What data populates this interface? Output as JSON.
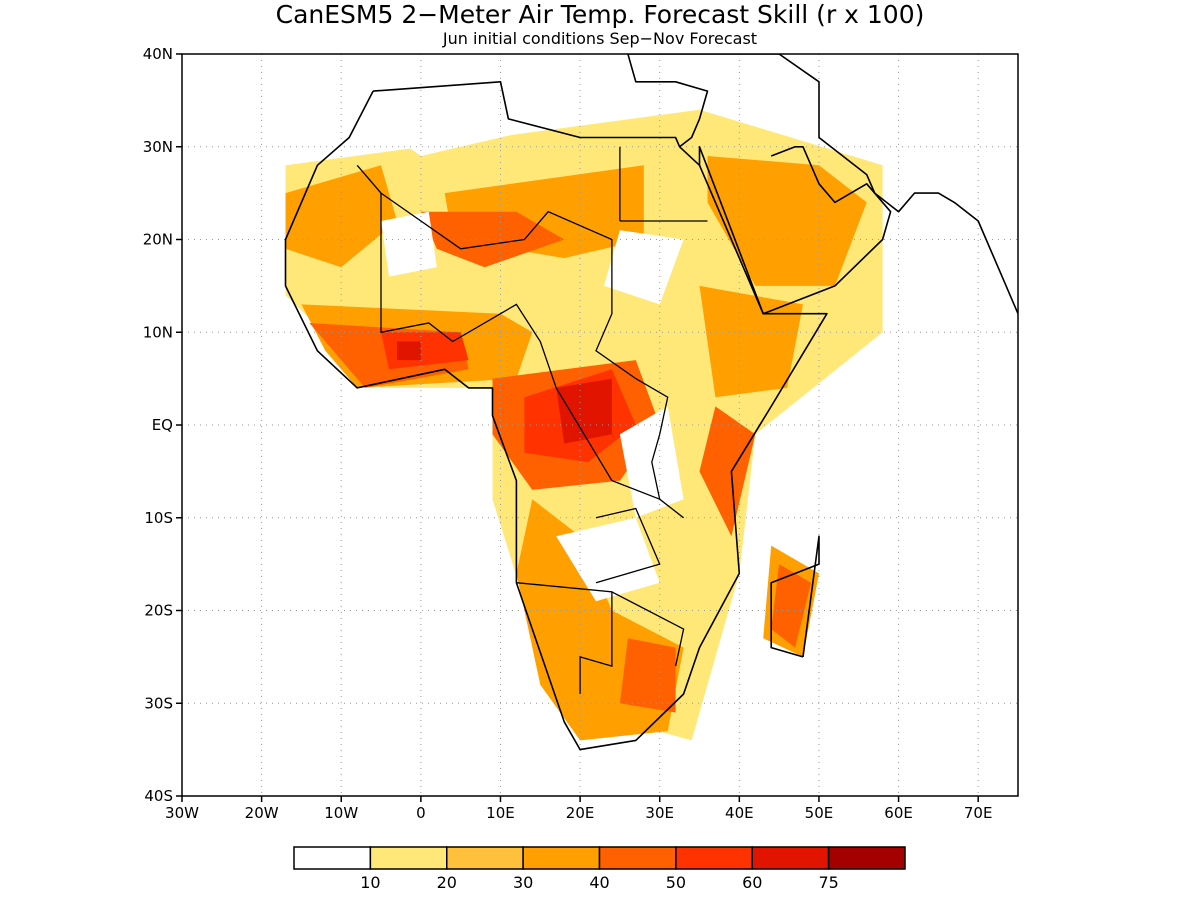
{
  "title": "CanESM5 2−Meter Air Temp. Forecast Skill (r x 100)",
  "subtitle": "Jun initial conditions  Sep−Nov Forecast",
  "map": {
    "lon_range": [
      -30,
      75
    ],
    "lat_range": [
      -40,
      40
    ],
    "grid": true,
    "lat_ticks": [
      {
        "value": 40,
        "label": "40N"
      },
      {
        "value": 30,
        "label": "30N"
      },
      {
        "value": 20,
        "label": "20N"
      },
      {
        "value": 10,
        "label": "10N"
      },
      {
        "value": 0,
        "label": "EQ"
      },
      {
        "value": -10,
        "label": "10S"
      },
      {
        "value": -20,
        "label": "20S"
      },
      {
        "value": -30,
        "label": "30S"
      },
      {
        "value": -40,
        "label": "40S"
      }
    ],
    "lon_ticks": [
      {
        "value": -30,
        "label": "30W"
      },
      {
        "value": -20,
        "label": "20W"
      },
      {
        "value": -10,
        "label": "10W"
      },
      {
        "value": 0,
        "label": "0"
      },
      {
        "value": 10,
        "label": "10E"
      },
      {
        "value": 20,
        "label": "20E"
      },
      {
        "value": 30,
        "label": "30E"
      },
      {
        "value": 40,
        "label": "40E"
      },
      {
        "value": 50,
        "label": "50E"
      },
      {
        "value": 60,
        "label": "60E"
      },
      {
        "value": 70,
        "label": "70E"
      }
    ]
  },
  "colorbar": {
    "colors": [
      "#ffffff",
      "#ffe878",
      "#ffc03c",
      "#ffa000",
      "#ff6000",
      "#ff3200",
      "#e11400",
      "#a50000"
    ],
    "labels": [
      "10",
      "20",
      "30",
      "40",
      "50",
      "60",
      "75"
    ]
  },
  "regions": [
    {
      "level": 1,
      "coords": [
        [
          -17,
          28
        ],
        [
          35,
          34
        ],
        [
          58,
          28
        ],
        [
          58,
          10
        ],
        [
          42,
          -1
        ],
        [
          40,
          -16
        ],
        [
          34,
          -34
        ],
        [
          17,
          -30
        ],
        [
          9,
          -8
        ],
        [
          9,
          4
        ],
        [
          -5,
          4
        ],
        [
          -17,
          14
        ]
      ]
    },
    {
      "level": 3,
      "coords": [
        [
          -17,
          25
        ],
        [
          -5,
          28
        ],
        [
          -3,
          22
        ],
        [
          -10,
          17
        ],
        [
          -17,
          19
        ]
      ]
    },
    {
      "level": 3,
      "coords": [
        [
          3,
          25
        ],
        [
          28,
          28
        ],
        [
          28,
          20
        ],
        [
          18,
          18
        ],
        [
          4,
          20
        ]
      ]
    },
    {
      "level": 3,
      "coords": [
        [
          36,
          29
        ],
        [
          50,
          28
        ],
        [
          56,
          24
        ],
        [
          52,
          15
        ],
        [
          42,
          15
        ],
        [
          36,
          24
        ]
      ]
    },
    {
      "level": 3,
      "coords": [
        [
          -15,
          13
        ],
        [
          10,
          12
        ],
        [
          14,
          10
        ],
        [
          12,
          5
        ],
        [
          -8,
          4
        ],
        [
          -12,
          8
        ]
      ]
    },
    {
      "level": 3,
      "coords": [
        [
          35,
          15
        ],
        [
          48,
          13
        ],
        [
          46,
          4
        ],
        [
          37,
          3
        ]
      ]
    },
    {
      "level": 3,
      "coords": [
        [
          14,
          -8
        ],
        [
          20,
          -12
        ],
        [
          24,
          -20
        ],
        [
          33,
          -24
        ],
        [
          31,
          -33
        ],
        [
          20,
          -34
        ],
        [
          15,
          -28
        ],
        [
          12,
          -16
        ]
      ]
    },
    {
      "level": 3,
      "coords": [
        [
          44,
          -13
        ],
        [
          50,
          -16
        ],
        [
          48,
          -25
        ],
        [
          43,
          -23
        ]
      ]
    },
    {
      "level": 4,
      "coords": [
        [
          0,
          23
        ],
        [
          12,
          23
        ],
        [
          18,
          20
        ],
        [
          8,
          17
        ],
        [
          2,
          19
        ]
      ]
    },
    {
      "level": 4,
      "coords": [
        [
          9,
          5
        ],
        [
          27,
          7
        ],
        [
          30,
          0
        ],
        [
          25,
          -6
        ],
        [
          14,
          -7
        ],
        [
          9,
          -1
        ]
      ]
    },
    {
      "level": 4,
      "coords": [
        [
          37,
          2
        ],
        [
          42,
          -1
        ],
        [
          39,
          -12
        ],
        [
          35,
          -5
        ]
      ]
    },
    {
      "level": 4,
      "coords": [
        [
          -14,
          11
        ],
        [
          5,
          10
        ],
        [
          6,
          6
        ],
        [
          -7,
          4
        ]
      ]
    },
    {
      "level": 4,
      "coords": [
        [
          26,
          -23
        ],
        [
          32,
          -24
        ],
        [
          32,
          -31
        ],
        [
          25,
          -30
        ]
      ]
    },
    {
      "level": 4,
      "coords": [
        [
          45,
          -15
        ],
        [
          49,
          -17
        ],
        [
          47,
          -24
        ],
        [
          44,
          -22
        ]
      ]
    },
    {
      "level": 5,
      "coords": [
        [
          13,
          3
        ],
        [
          24,
          6
        ],
        [
          27,
          0
        ],
        [
          21,
          -4
        ],
        [
          13,
          -3
        ]
      ]
    },
    {
      "level": 5,
      "coords": [
        [
          -5,
          10
        ],
        [
          5,
          10
        ],
        [
          6,
          7
        ],
        [
          -4,
          6
        ]
      ]
    },
    {
      "level": 6,
      "coords": [
        [
          17,
          4
        ],
        [
          24,
          5
        ],
        [
          24,
          -1
        ],
        [
          18,
          -2
        ]
      ]
    },
    {
      "level": 6,
      "coords": [
        [
          -3,
          9
        ],
        [
          0,
          9
        ],
        [
          0,
          7
        ],
        [
          -3,
          7
        ]
      ]
    },
    {
      "level": 0,
      "coords": [
        [
          -5,
          22
        ],
        [
          1,
          23
        ],
        [
          2,
          17
        ],
        [
          -4,
          16
        ]
      ]
    },
    {
      "level": 0,
      "coords": [
        [
          25,
          21
        ],
        [
          33,
          20
        ],
        [
          30,
          13
        ],
        [
          23,
          15
        ]
      ]
    },
    {
      "level": 0,
      "coords": [
        [
          25,
          -1
        ],
        [
          31,
          2
        ],
        [
          33,
          -8
        ],
        [
          27,
          -10
        ]
      ]
    },
    {
      "level": 0,
      "coords": [
        [
          17,
          -12
        ],
        [
          27,
          -10
        ],
        [
          30,
          -17
        ],
        [
          22,
          -19
        ]
      ]
    },
    {
      "level": 0,
      "coords": [
        [
          -10,
          35
        ],
        [
          5,
          37
        ],
        [
          15,
          32
        ],
        [
          0,
          29
        ]
      ]
    }
  ],
  "coastlines": [
    {
      "coords": [
        [
          -6,
          36
        ],
        [
          10,
          37
        ],
        [
          11,
          33
        ],
        [
          20,
          31
        ],
        [
          32,
          31
        ],
        [
          32.5,
          30
        ],
        [
          35,
          28
        ],
        [
          38,
          22
        ],
        [
          43,
          12
        ],
        [
          51,
          12
        ],
        [
          44,
          2
        ],
        [
          39,
          -5
        ],
        [
          40,
          -16
        ],
        [
          35,
          -24
        ],
        [
          33,
          -29
        ],
        [
          27,
          -34
        ],
        [
          20,
          -35
        ],
        [
          18,
          -32
        ],
        [
          14,
          -22
        ],
        [
          12,
          -17
        ],
        [
          12,
          -6
        ],
        [
          9,
          1
        ],
        [
          9,
          4
        ],
        [
          6,
          4
        ],
        [
          3,
          6
        ],
        [
          -8,
          4
        ],
        [
          -13,
          8
        ],
        [
          -17,
          15
        ],
        [
          -17,
          20
        ],
        [
          -13,
          28
        ],
        [
          -9,
          31
        ],
        [
          -6,
          36
        ]
      ]
    },
    {
      "coords": [
        [
          32.5,
          30
        ],
        [
          34,
          31
        ],
        [
          35,
          33
        ],
        [
          36,
          36
        ],
        [
          32,
          37
        ],
        [
          27,
          37
        ],
        [
          26,
          40
        ],
        [
          45,
          40
        ],
        [
          50,
          37
        ],
        [
          50,
          31
        ],
        [
          56,
          27
        ],
        [
          57,
          25
        ],
        [
          60,
          23
        ],
        [
          62,
          25
        ],
        [
          65,
          25
        ],
        [
          67,
          24
        ],
        [
          70,
          22
        ],
        [
          73,
          16
        ],
        [
          75,
          12
        ]
      ]
    },
    {
      "coords": [
        [
          35,
          28
        ],
        [
          35,
          30
        ],
        [
          39,
          21
        ],
        [
          43,
          12
        ],
        [
          52,
          15
        ],
        [
          58,
          20
        ],
        [
          59,
          23
        ],
        [
          56,
          26
        ],
        [
          52,
          24
        ],
        [
          50,
          26
        ],
        [
          48,
          30
        ],
        [
          47,
          30
        ],
        [
          44,
          29
        ]
      ]
    },
    {
      "coords": [
        [
          48,
          -25
        ],
        [
          44,
          -24
        ],
        [
          44,
          -17
        ],
        [
          50,
          -15
        ],
        [
          50,
          -12
        ],
        [
          48,
          -25
        ]
      ]
    }
  ],
  "borders": [
    {
      "coords": [
        [
          -8,
          28
        ],
        [
          -5,
          25
        ],
        [
          5,
          19
        ],
        [
          13,
          20
        ],
        [
          16,
          23
        ],
        [
          24,
          20
        ],
        [
          24,
          12
        ],
        [
          22,
          8
        ],
        [
          27,
          5
        ],
        [
          31,
          3
        ],
        [
          30,
          -1
        ],
        [
          29,
          -4
        ],
        [
          30,
          -8
        ],
        [
          33,
          -10
        ]
      ]
    },
    {
      "coords": [
        [
          25,
          22
        ],
        [
          25,
          30
        ]
      ]
    },
    {
      "coords": [
        [
          25,
          22
        ],
        [
          36,
          22
        ]
      ]
    },
    {
      "coords": [
        [
          -5,
          25
        ],
        [
          -5,
          10
        ],
        [
          1,
          11
        ],
        [
          4,
          9
        ],
        [
          12,
          13
        ],
        [
          15,
          9
        ],
        [
          17,
          4
        ],
        [
          24,
          -6
        ],
        [
          30,
          -8
        ]
      ]
    },
    {
      "coords": [
        [
          12,
          -17
        ],
        [
          24,
          -18
        ],
        [
          24,
          -26
        ],
        [
          20,
          -25
        ],
        [
          20,
          -29
        ]
      ]
    },
    {
      "coords": [
        [
          24,
          -18
        ],
        [
          33,
          -22
        ],
        [
          32,
          -26
        ]
      ]
    },
    {
      "coords": [
        [
          22,
          -10
        ],
        [
          27,
          -9
        ],
        [
          30,
          -15
        ],
        [
          22,
          -17
        ]
      ]
    }
  ]
}
